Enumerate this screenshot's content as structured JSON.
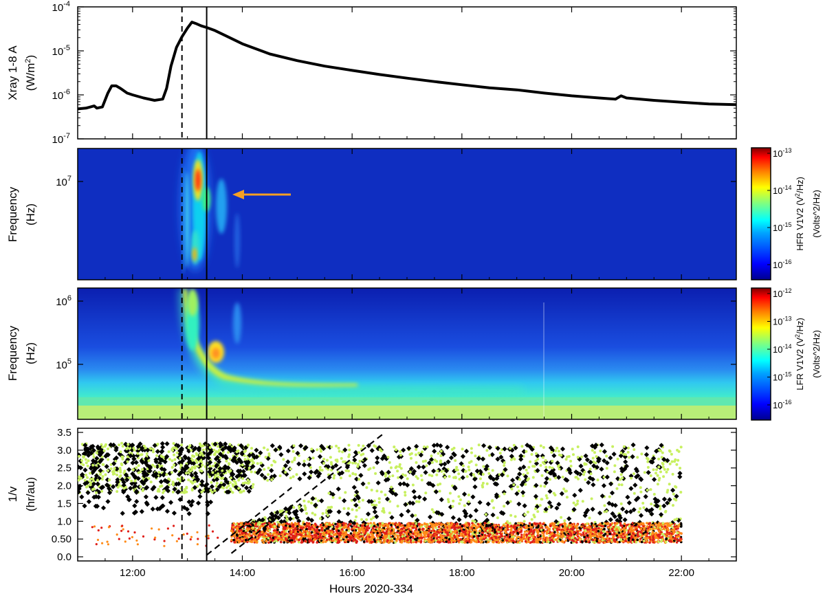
{
  "chart_data": [
    {
      "type": "line",
      "panel": "xray",
      "ylabel_line1": "Xray 1-8 A",
      "ylabel_line2": "(W/m",
      "ylabel_sup": "2",
      "ylabel_close": ")",
      "yscale": "log",
      "ylim": [
        1e-07,
        0.0001
      ],
      "yticks": [
        {
          "base": "10",
          "exp": "-7",
          "value": 1e-07
        },
        {
          "base": "10",
          "exp": "-6",
          "value": 1e-06
        },
        {
          "base": "10",
          "exp": "-5",
          "value": 1e-05
        },
        {
          "base": "10",
          "exp": "-4",
          "value": 0.0001
        }
      ],
      "xlim": [
        11.0,
        23.0
      ],
      "series": [
        {
          "x": [
            11.0,
            11.15,
            11.3,
            11.35,
            11.45,
            11.55,
            11.62,
            11.7,
            11.78,
            11.9,
            12.0,
            12.2,
            12.4,
            12.55,
            12.62,
            12.7,
            12.8,
            12.9,
            13.0,
            13.08,
            13.15,
            13.25,
            13.35,
            13.5,
            13.7,
            14.0,
            14.5,
            15.0,
            15.5,
            16.0,
            16.5,
            17.0,
            17.5,
            18.0,
            18.5,
            19.0,
            19.5,
            20.0,
            20.5,
            20.8,
            20.9,
            21.0,
            21.5,
            22.0,
            22.5,
            23.0
          ],
          "y": [
            4.8e-07,
            5e-07,
            5.6e-07,
            5e-07,
            5.3e-07,
            1.1e-06,
            1.6e-06,
            1.6e-06,
            1.4e-06,
            1.1e-06,
            1e-06,
            8.5e-07,
            7.5e-07,
            8e-07,
            1.4e-06,
            4.5e-06,
            1.2e-05,
            2.1e-05,
            3.3e-05,
            4.5e-05,
            4.2e-05,
            3.7e-05,
            3.4e-05,
            2.9e-05,
            2.2e-05,
            1.45e-05,
            8.5e-06,
            6e-06,
            4.5e-06,
            3.6e-06,
            2.9e-06,
            2.4e-06,
            2e-06,
            1.7e-06,
            1.45e-06,
            1.3e-06,
            1.1e-06,
            9.5e-07,
            8.5e-07,
            8e-07,
            9.5e-07,
            8.5e-07,
            7.5e-07,
            6.8e-07,
            6.2e-07,
            6e-07
          ]
        }
      ],
      "vlines": [
        {
          "x": 12.9,
          "style": "dashed"
        },
        {
          "x": 13.35,
          "style": "solid"
        }
      ]
    },
    {
      "type": "heatmap",
      "panel": "hfr",
      "ylabel_line1": "Frequency",
      "ylabel_line2": "(Hz)",
      "yscale": "log",
      "yticks": [
        {
          "base": "10",
          "exp": "7",
          "value": 10000000.0
        }
      ],
      "colorbar": {
        "label_main": "HFR V1V2 (V",
        "label_sup": "2",
        "label_tail": "/Hz)",
        "label_units": "(Volts^2/Hz)",
        "ticks": [
          {
            "base": "10",
            "exp": "-13"
          },
          {
            "base": "10",
            "exp": "-14"
          },
          {
            "base": "10",
            "exp": "-15"
          },
          {
            "base": "10",
            "exp": "-16"
          }
        ],
        "colors": [
          "#00008f",
          "#0000ff",
          "#0080ff",
          "#00ffff",
          "#80ff80",
          "#ffff00",
          "#ff8000",
          "#ff0000",
          "#800000"
        ]
      },
      "annotation": {
        "type": "arrow",
        "color": "#f5a023",
        "direction": "left"
      }
    },
    {
      "type": "heatmap",
      "panel": "lfr",
      "ylabel_line1": "Frequency",
      "ylabel_line2": "(Hz)",
      "yscale": "log",
      "yticks": [
        {
          "base": "10",
          "exp": "6",
          "value": 1000000.0
        },
        {
          "base": "10",
          "exp": "5",
          "value": 100000.0
        }
      ],
      "colorbar": {
        "label_main": "LFR V1V2 (V",
        "label_sup": "2",
        "label_tail": "/Hz)",
        "label_units": "(Volts^2/Hz)",
        "ticks": [
          {
            "base": "10",
            "exp": "-12"
          },
          {
            "base": "10",
            "exp": "-13"
          },
          {
            "base": "10",
            "exp": "-14"
          },
          {
            "base": "10",
            "exp": "-15"
          },
          {
            "base": "10",
            "exp": "-16"
          }
        ],
        "colors": [
          "#00008f",
          "#0000ff",
          "#0080ff",
          "#00ffff",
          "#80ff80",
          "#ffff00",
          "#ff8000",
          "#ff0000",
          "#800000"
        ]
      }
    },
    {
      "type": "scatter",
      "panel": "inverse-velocity",
      "ylabel_line1": "1/v",
      "ylabel_line2": "(hr/au)",
      "ylim": [
        0.0,
        3.5
      ],
      "yticks": [
        "0.0",
        "0.50",
        "1.0",
        "1.5",
        "2.0",
        "2.5",
        "3.0",
        "3.5"
      ],
      "ytick_values": [
        0.0,
        0.5,
        1.0,
        1.5,
        2.0,
        2.5,
        3.0,
        3.5
      ],
      "series_colors": [
        "#000000",
        "#c8f060",
        "#ff8c1a",
        "#e0201a"
      ],
      "dashed_lines": [
        {
          "x": [
            13.8,
            16.6
          ],
          "y": [
            0.1,
            3.5
          ]
        },
        {
          "x": [
            13.35,
            14.9
          ],
          "y": [
            0.05,
            1.95
          ]
        }
      ]
    }
  ],
  "xaxis": {
    "label": "Hours 2020-334",
    "xlim": [
      11.0,
      23.0
    ],
    "ticks": [
      {
        "label": "12:00",
        "value": 12
      },
      {
        "label": "14:00",
        "value": 14
      },
      {
        "label": "16:00",
        "value": 16
      },
      {
        "label": "18:00",
        "value": 18
      },
      {
        "label": "20:00",
        "value": 20
      },
      {
        "label": "22:00",
        "value": 22
      }
    ]
  }
}
